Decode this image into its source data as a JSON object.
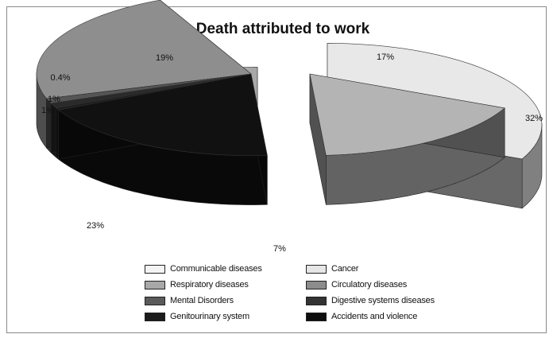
{
  "chart_data": {
    "type": "pie",
    "title": "Death attributed to work",
    "slices": [
      {
        "name": "Cancer",
        "value": 32,
        "label": "32%",
        "color": "#e8e8e8"
      },
      {
        "name": "Circulatory diseases",
        "value": 17,
        "label": "17%",
        "color": "#b4b4b4"
      },
      {
        "name": "Accidents and violence",
        "value": 19,
        "label": "19%",
        "color": "#111111"
      },
      {
        "name": "Genitourinary system",
        "value": 0.4,
        "label": "0.4%",
        "color": "#1c1c1c"
      },
      {
        "name": "Digestive systems diseases",
        "value": 1,
        "label": "1%",
        "color": "#2a2a2a"
      },
      {
        "name": "Mental Disorders",
        "value": 1,
        "label": "1%",
        "color": "#555555"
      },
      {
        "name": "Respiratory diseases",
        "value": 23,
        "label": "23%",
        "color": "#8e8e8e"
      },
      {
        "name": "Communicable diseases",
        "value": 7,
        "label": "7%",
        "color": "#a8a8a8"
      }
    ],
    "legend": [
      {
        "name": "Communicable diseases",
        "color": "#f4f4f4"
      },
      {
        "name": "Cancer",
        "color": "#e6e6e6"
      },
      {
        "name": "Respiratory diseases",
        "color": "#a8a8a8"
      },
      {
        "name": "Circulatory diseases",
        "color": "#8c8c8c"
      },
      {
        "name": "Mental Disorders",
        "color": "#5a5a5a"
      },
      {
        "name": "Digestive systems diseases",
        "color": "#333333"
      },
      {
        "name": "Genitourinary system",
        "color": "#1c1c1c"
      },
      {
        "name": "Accidents and violence",
        "color": "#0e0e0e"
      }
    ],
    "legend_position": "bottom"
  }
}
